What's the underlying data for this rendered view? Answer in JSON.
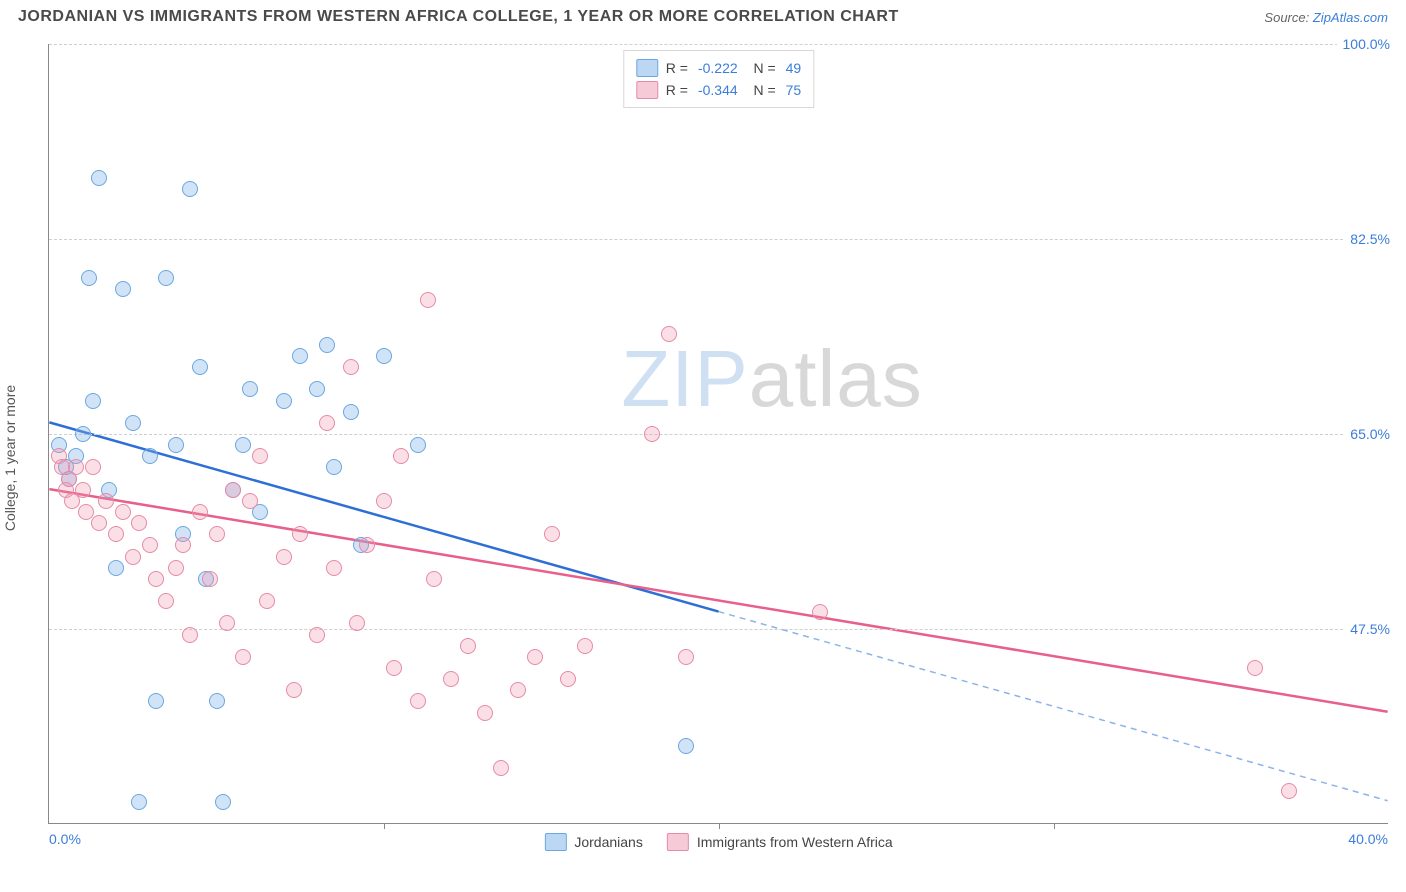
{
  "title": "JORDANIAN VS IMMIGRANTS FROM WESTERN AFRICA COLLEGE, 1 YEAR OR MORE CORRELATION CHART",
  "source_label": "Source:",
  "source_name": "ZipAtlas.com",
  "ylabel": "College, 1 year or more",
  "watermark_a": "ZIP",
  "watermark_b": "atlas",
  "chart": {
    "type": "scatter",
    "xlim": [
      0,
      40
    ],
    "ylim": [
      30,
      100
    ],
    "x_ticks": [
      0,
      40
    ],
    "x_tick_labels": [
      "0.0%",
      "40.0%"
    ],
    "x_minor_ticks": [
      10,
      20,
      30
    ],
    "y_ticks": [
      47.5,
      65.0,
      82.5,
      100.0
    ],
    "y_tick_labels": [
      "47.5%",
      "65.0%",
      "82.5%",
      "100.0%"
    ],
    "grid_color": "#cfcfcf",
    "background_color": "#ffffff",
    "axis_color": "#888888",
    "marker_size": 16,
    "series": [
      {
        "name": "Jordanians",
        "color_fill": "rgba(122,175,232,0.35)",
        "color_stroke": "#6aa8e0",
        "trend_color": "#2e6fd6",
        "trend_dash_color": "#8cb4e6",
        "R": "-0.222",
        "N": "49",
        "trend": {
          "x1": 0,
          "y1": 66,
          "x2_solid": 20,
          "y2_solid": 49,
          "x2": 40,
          "y2": 32
        },
        "points": [
          [
            0.3,
            64
          ],
          [
            0.5,
            62
          ],
          [
            0.6,
            61
          ],
          [
            0.8,
            63
          ],
          [
            1.0,
            65
          ],
          [
            1.2,
            79
          ],
          [
            1.3,
            68
          ],
          [
            1.5,
            88
          ],
          [
            1.8,
            60
          ],
          [
            2.0,
            53
          ],
          [
            2.2,
            78
          ],
          [
            2.5,
            66
          ],
          [
            2.7,
            32
          ],
          [
            3.0,
            63
          ],
          [
            3.2,
            41
          ],
          [
            3.5,
            79
          ],
          [
            3.8,
            64
          ],
          [
            4.0,
            56
          ],
          [
            4.2,
            87
          ],
          [
            4.5,
            71
          ],
          [
            4.7,
            52
          ],
          [
            5.0,
            41
          ],
          [
            5.2,
            32
          ],
          [
            5.5,
            60
          ],
          [
            5.8,
            64
          ],
          [
            6.0,
            69
          ],
          [
            6.3,
            58
          ],
          [
            7.0,
            68
          ],
          [
            7.5,
            72
          ],
          [
            8.0,
            69
          ],
          [
            8.3,
            73
          ],
          [
            8.5,
            62
          ],
          [
            9.0,
            67
          ],
          [
            9.3,
            55
          ],
          [
            10.0,
            72
          ],
          [
            11.0,
            64
          ],
          [
            19.0,
            37
          ]
        ]
      },
      {
        "name": "Immigrants from Western Africa",
        "color_fill": "rgba(240,150,175,0.30)",
        "color_stroke": "#e78aa8",
        "trend_color": "#e85f8a",
        "R": "-0.344",
        "N": "75",
        "trend": {
          "x1": 0,
          "y1": 60,
          "x2_solid": 40,
          "y2_solid": 40,
          "x2": 40,
          "y2": 40
        },
        "points": [
          [
            0.3,
            63
          ],
          [
            0.4,
            62
          ],
          [
            0.5,
            60
          ],
          [
            0.6,
            61
          ],
          [
            0.7,
            59
          ],
          [
            0.8,
            62
          ],
          [
            1.0,
            60
          ],
          [
            1.1,
            58
          ],
          [
            1.3,
            62
          ],
          [
            1.5,
            57
          ],
          [
            1.7,
            59
          ],
          [
            2.0,
            56
          ],
          [
            2.2,
            58
          ],
          [
            2.5,
            54
          ],
          [
            2.7,
            57
          ],
          [
            3.0,
            55
          ],
          [
            3.2,
            52
          ],
          [
            3.5,
            50
          ],
          [
            3.8,
            53
          ],
          [
            4.0,
            55
          ],
          [
            4.2,
            47
          ],
          [
            4.5,
            58
          ],
          [
            4.8,
            52
          ],
          [
            5.0,
            56
          ],
          [
            5.3,
            48
          ],
          [
            5.5,
            60
          ],
          [
            5.8,
            45
          ],
          [
            6.0,
            59
          ],
          [
            6.3,
            63
          ],
          [
            6.5,
            50
          ],
          [
            7.0,
            54
          ],
          [
            7.3,
            42
          ],
          [
            7.5,
            56
          ],
          [
            8.0,
            47
          ],
          [
            8.3,
            66
          ],
          [
            8.5,
            53
          ],
          [
            9.0,
            71
          ],
          [
            9.2,
            48
          ],
          [
            9.5,
            55
          ],
          [
            10.0,
            59
          ],
          [
            10.3,
            44
          ],
          [
            10.5,
            63
          ],
          [
            11.0,
            41
          ],
          [
            11.3,
            77
          ],
          [
            11.5,
            52
          ],
          [
            12.0,
            43
          ],
          [
            12.5,
            46
          ],
          [
            13.0,
            40
          ],
          [
            13.5,
            35
          ],
          [
            14.0,
            42
          ],
          [
            14.5,
            45
          ],
          [
            15.0,
            56
          ],
          [
            15.5,
            43
          ],
          [
            16.0,
            46
          ],
          [
            18.0,
            65
          ],
          [
            18.5,
            74
          ],
          [
            19.0,
            45
          ],
          [
            23.0,
            49
          ],
          [
            36.0,
            44
          ],
          [
            37.0,
            33
          ]
        ]
      }
    ],
    "legend_bottom": [
      {
        "label": "Jordanians",
        "swatch": "sw-blue"
      },
      {
        "label": "Immigrants from Western Africa",
        "swatch": "sw-pink"
      }
    ]
  }
}
